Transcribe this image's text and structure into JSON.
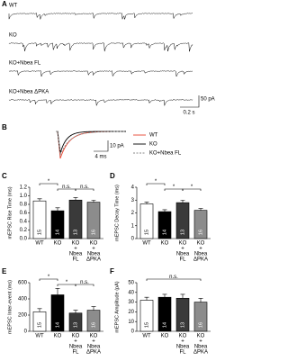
{
  "chart_data": [
    {
      "type": "traces",
      "panel": "A",
      "series": [
        {
          "name": "WT"
        },
        {
          "name": "KO"
        },
        {
          "name": "KO+Nbea FL"
        },
        {
          "name": "KO+Nbea ΔPKA"
        }
      ],
      "scale_bar": {
        "y": "50 pA",
        "x": "0.2 s"
      }
    },
    {
      "type": "average",
      "panel": "B",
      "series": [
        {
          "name": "WT",
          "color": "#e8432e"
        },
        {
          "name": "KO",
          "color": "#000000"
        },
        {
          "name": "KO+Nbea FL",
          "color": "#8a8a8a",
          "dashed": true
        }
      ],
      "scale_bar": {
        "y": "10 pA",
        "x": "4 ms"
      }
    },
    {
      "type": "bar",
      "panel": "C",
      "ylabel": "mEPSC Rise Time (ms)",
      "categories": [
        [
          "WT"
        ],
        [
          "KO"
        ],
        [
          "KO",
          "+",
          "Nbea",
          "FL"
        ],
        [
          "KO",
          "+",
          "Nbea",
          "ΔPKA"
        ]
      ],
      "values": [
        0.88,
        0.65,
        0.9,
        0.85
      ],
      "errors": [
        0.05,
        0.07,
        0.06,
        0.05
      ],
      "n": [
        15,
        14,
        13,
        16
      ],
      "colors": [
        "#ffffff",
        "#000000",
        "#3a3a3a",
        "#8c8c8c"
      ],
      "ylim": [
        0,
        1.2
      ],
      "yticks": [
        {
          "value": 0,
          "label": "0.0"
        },
        0.2,
        0.4,
        0.6,
        0.8,
        {
          "value": 1,
          "label": "1.0"
        },
        1.2
      ],
      "significance": [
        "*",
        "n.s.",
        "n.s."
      ]
    },
    {
      "type": "bar",
      "panel": "D",
      "ylabel": "mEPSC Decay Time (ms)",
      "categories": [
        [
          "WT"
        ],
        [
          "KO"
        ],
        [
          "KO",
          "+",
          "Nbea",
          "FL"
        ],
        [
          "KO",
          "+",
          "Nbea",
          "ΔPKA"
        ]
      ],
      "values": [
        2.7,
        2.1,
        2.8,
        2.2
      ],
      "errors": [
        0.15,
        0.15,
        0.2,
        0.15
      ],
      "n": [
        15,
        14,
        13,
        16
      ],
      "colors": [
        "#ffffff",
        "#000000",
        "#3a3a3a",
        "#8c8c8c"
      ],
      "ylim": [
        0,
        4
      ],
      "yticks": [
        0,
        1,
        2,
        3,
        4
      ],
      "significance": [
        "*",
        "*",
        "*"
      ]
    },
    {
      "type": "bar",
      "panel": "E",
      "ylabel": "mEPSC Inter-event (ms)",
      "categories": [
        [
          "WT"
        ],
        [
          "KO"
        ],
        [
          "KO",
          "+",
          "Nbea",
          "FL"
        ],
        [
          "KO",
          "+",
          "Nbea",
          "ΔPKA"
        ]
      ],
      "values": [
        240,
        450,
        225,
        260
      ],
      "errors": [
        40,
        80,
        35,
        45
      ],
      "n": [
        15,
        14,
        13,
        16
      ],
      "colors": [
        "#ffffff",
        "#000000",
        "#3a3a3a",
        "#8c8c8c"
      ],
      "ylim": [
        0,
        600
      ],
      "yticks": [
        0,
        200,
        400,
        600
      ],
      "significance": [
        "*",
        "*",
        "n.s."
      ]
    },
    {
      "type": "bar",
      "panel": "F",
      "ylabel": "mEPSC Amplitude (pA)",
      "categories": [
        [
          "WT"
        ],
        [
          "KO"
        ],
        [
          "KO",
          "+",
          "Nbea",
          "FL"
        ],
        [
          "KO",
          "+",
          "Nbea",
          "ΔPKA"
        ]
      ],
      "values": [
        32,
        35,
        34,
        30
      ],
      "errors": [
        3,
        3,
        4,
        4
      ],
      "n": [
        15,
        14,
        13,
        16
      ],
      "colors": [
        "#ffffff",
        "#000000",
        "#3a3a3a",
        "#8c8c8c"
      ],
      "ylim": [
        0,
        50
      ],
      "yticks": [
        0,
        10,
        20,
        30,
        40,
        50
      ],
      "significance": [
        "n.s."
      ]
    }
  ]
}
